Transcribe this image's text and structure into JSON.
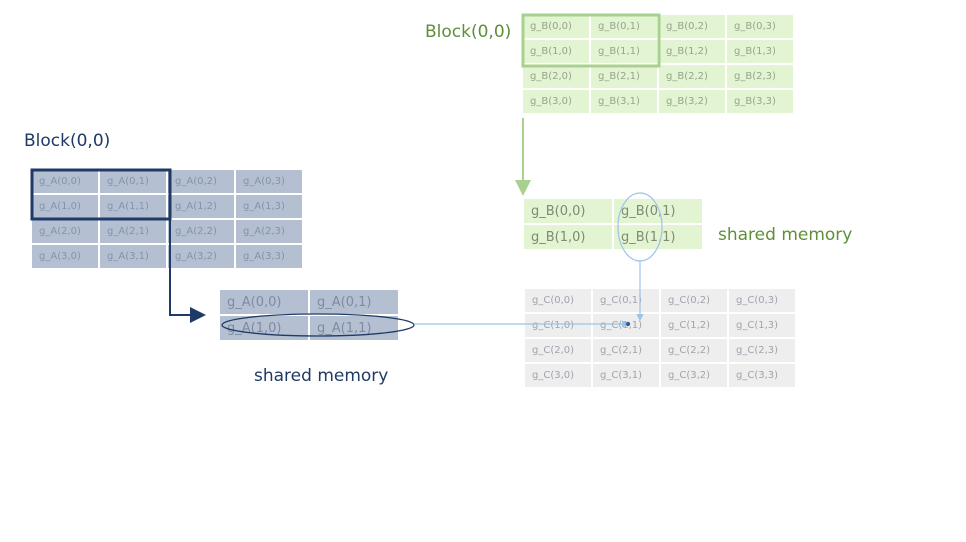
{
  "titles": {
    "block_b": "Block(0,0)",
    "block_a": "Block(0,0)"
  },
  "labels": {
    "shared_b": "shared memory",
    "shared_a": "shared memory"
  },
  "grid_a": [
    [
      "g_A(0,0)",
      "g_A(0,1)",
      "g_A(0,2)",
      "g_A(0,3)"
    ],
    [
      "g_A(1,0)",
      "g_A(1,1)",
      "g_A(1,2)",
      "g_A(1,3)"
    ],
    [
      "g_A(2,0)",
      "g_A(2,1)",
      "g_A(2,2)",
      "g_A(2,3)"
    ],
    [
      "g_A(3,0)",
      "g_A(3,1)",
      "g_A(3,2)",
      "g_A(3,3)"
    ]
  ],
  "grid_b": [
    [
      "g_B(0,0)",
      "g_B(0,1)",
      "g_B(0,2)",
      "g_B(0,3)"
    ],
    [
      "g_B(1,0)",
      "g_B(1,1)",
      "g_B(1,2)",
      "g_B(1,3)"
    ],
    [
      "g_B(2,0)",
      "g_B(2,1)",
      "g_B(2,2)",
      "g_B(2,3)"
    ],
    [
      "g_B(3,0)",
      "g_B(3,1)",
      "g_B(3,2)",
      "g_B(3,3)"
    ]
  ],
  "grid_c": [
    [
      "g_C(0,0)",
      "g_C(0,1)",
      "g_C(0,2)",
      "g_C(0,3)"
    ],
    [
      "g_C(1,0)",
      "g_C(1,1)",
      "g_C(1,2)",
      "g_C(1,3)"
    ],
    [
      "g_C(2,0)",
      "g_C(2,1)",
      "g_C(2,2)",
      "g_C(2,3)"
    ],
    [
      "g_C(3,0)",
      "g_C(3,1)",
      "g_C(3,2)",
      "g_C(3,3)"
    ]
  ],
  "shared_a": [
    [
      "g_A(0,0)",
      "g_A(0,1)"
    ],
    [
      "g_A(1,0)",
      "g_A(1,1)"
    ]
  ],
  "shared_b": [
    [
      "g_B(0,0)",
      "g_B(0,1)"
    ],
    [
      "g_B(1,0)",
      "g_B(1,1)"
    ]
  ],
  "colors": {
    "blue_dark": "#1f3a66",
    "green": "#5f8f3a",
    "green_light": "#a9d18e",
    "arrow_blue_light": "#9dc3e6"
  }
}
